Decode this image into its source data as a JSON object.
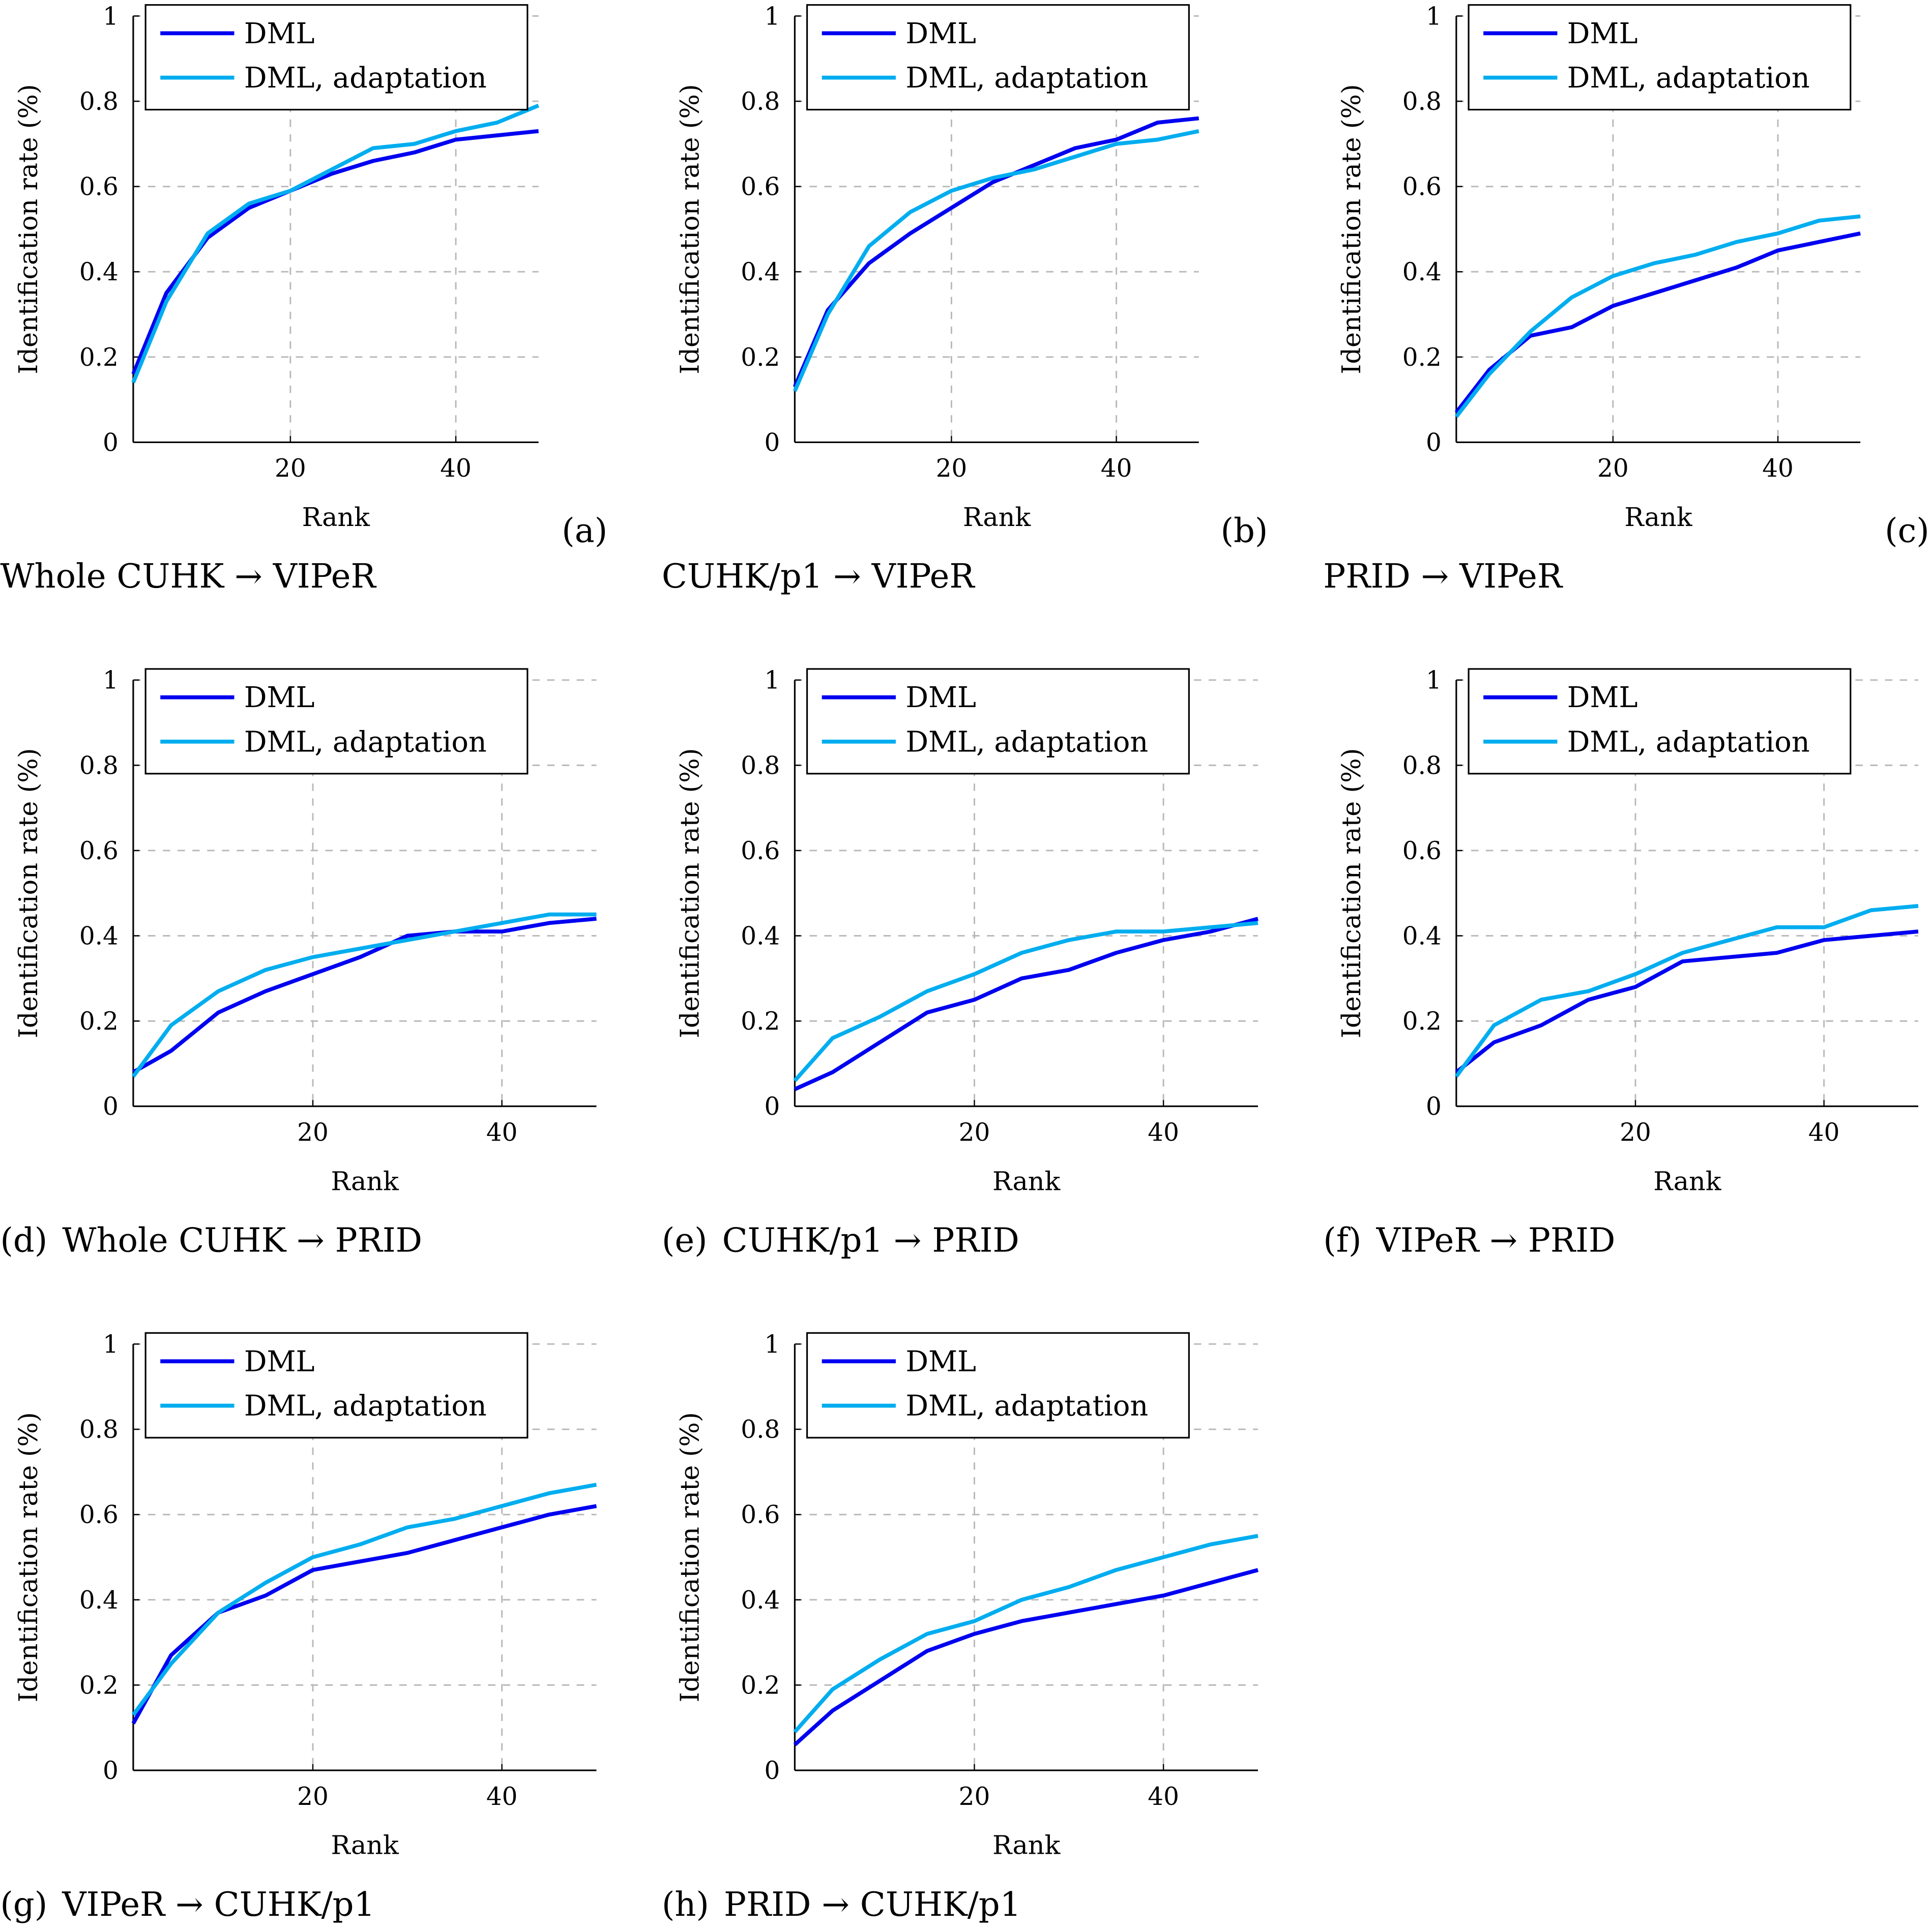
{
  "colors": {
    "dml": "#0000F0",
    "adapt": "#00ADEF",
    "grid": "#b8b8b8"
  },
  "chart_data": [
    {
      "type": "line",
      "panel": "(a)",
      "caption": "Whole CUHK → VIPeR",
      "xlabel": "Rank",
      "ylabel": "Identification rate (%)",
      "xlim": [
        1,
        50
      ],
      "ylim": [
        0,
        1
      ],
      "xticks": [
        20,
        40
      ],
      "yticks": [
        0,
        0.2,
        0.4,
        0.6,
        0.8,
        1
      ],
      "grid": true,
      "legend": "top-left",
      "x": [
        1,
        5,
        10,
        15,
        20,
        25,
        30,
        35,
        40,
        45,
        50
      ],
      "series": [
        {
          "name": "DML",
          "values": [
            0.16,
            0.35,
            0.48,
            0.55,
            0.59,
            0.63,
            0.66,
            0.68,
            0.71,
            0.72,
            0.73
          ]
        },
        {
          "name": "DML, adaptation",
          "values": [
            0.14,
            0.33,
            0.49,
            0.56,
            0.59,
            0.64,
            0.69,
            0.7,
            0.73,
            0.75,
            0.79
          ]
        }
      ]
    },
    {
      "type": "line",
      "panel": "(b)",
      "caption": "CUHK/p1 → VIPeR",
      "xlabel": "Rank",
      "ylabel": "Identification rate (%)",
      "xlim": [
        1,
        50
      ],
      "ylim": [
        0,
        1
      ],
      "xticks": [
        20,
        40
      ],
      "yticks": [
        0,
        0.2,
        0.4,
        0.6,
        0.8,
        1
      ],
      "grid": true,
      "legend": "top-left",
      "x": [
        1,
        5,
        10,
        15,
        20,
        25,
        30,
        35,
        40,
        45,
        50
      ],
      "series": [
        {
          "name": "DML",
          "values": [
            0.13,
            0.31,
            0.42,
            0.49,
            0.55,
            0.61,
            0.65,
            0.69,
            0.71,
            0.75,
            0.76
          ]
        },
        {
          "name": "DML, adaptation",
          "values": [
            0.12,
            0.3,
            0.46,
            0.54,
            0.59,
            0.62,
            0.64,
            0.67,
            0.7,
            0.71,
            0.73
          ]
        }
      ]
    },
    {
      "type": "line",
      "panel": "(c)",
      "caption": "PRID → VIPeR",
      "xlabel": "Rank",
      "ylabel": "Identification rate (%)",
      "xlim": [
        1,
        50
      ],
      "ylim": [
        0,
        1
      ],
      "xticks": [
        20,
        40
      ],
      "yticks": [
        0,
        0.2,
        0.4,
        0.6,
        0.8,
        1
      ],
      "grid": true,
      "legend": "top-left",
      "x": [
        1,
        5,
        10,
        15,
        20,
        25,
        30,
        35,
        40,
        45,
        50
      ],
      "series": [
        {
          "name": "DML",
          "values": [
            0.07,
            0.17,
            0.25,
            0.27,
            0.32,
            0.35,
            0.38,
            0.41,
            0.45,
            0.47,
            0.49
          ]
        },
        {
          "name": "DML, adaptation",
          "values": [
            0.06,
            0.16,
            0.26,
            0.34,
            0.39,
            0.42,
            0.44,
            0.47,
            0.49,
            0.52,
            0.53
          ]
        }
      ]
    },
    {
      "type": "line",
      "panel": "(d)",
      "caption": "Whole CUHK → PRID",
      "xlabel": "Rank",
      "ylabel": "Identification rate (%)",
      "xlim": [
        1,
        50
      ],
      "ylim": [
        0,
        1
      ],
      "xticks": [
        20,
        40
      ],
      "yticks": [
        0,
        0.2,
        0.4,
        0.6,
        0.8,
        1
      ],
      "grid": true,
      "legend": "top-left",
      "x": [
        1,
        5,
        10,
        15,
        20,
        25,
        30,
        35,
        40,
        45,
        50
      ],
      "series": [
        {
          "name": "DML",
          "values": [
            0.08,
            0.13,
            0.22,
            0.27,
            0.31,
            0.35,
            0.4,
            0.41,
            0.41,
            0.43,
            0.44
          ]
        },
        {
          "name": "DML, adaptation",
          "values": [
            0.07,
            0.19,
            0.27,
            0.32,
            0.35,
            0.37,
            0.39,
            0.41,
            0.43,
            0.45,
            0.45
          ]
        }
      ]
    },
    {
      "type": "line",
      "panel": "(e)",
      "caption": "CUHK/p1 → PRID",
      "xlabel": "Rank",
      "ylabel": "Identification rate (%)",
      "xlim": [
        1,
        50
      ],
      "ylim": [
        0,
        1
      ],
      "xticks": [
        20,
        40
      ],
      "yticks": [
        0,
        0.2,
        0.4,
        0.6,
        0.8,
        1
      ],
      "grid": true,
      "legend": "top-left",
      "x": [
        1,
        5,
        10,
        15,
        20,
        25,
        30,
        35,
        40,
        45,
        50
      ],
      "series": [
        {
          "name": "DML",
          "values": [
            0.04,
            0.08,
            0.15,
            0.22,
            0.25,
            0.3,
            0.32,
            0.36,
            0.39,
            0.41,
            0.44
          ]
        },
        {
          "name": "DML, adaptation",
          "values": [
            0.06,
            0.16,
            0.21,
            0.27,
            0.31,
            0.36,
            0.39,
            0.41,
            0.41,
            0.42,
            0.43
          ]
        }
      ]
    },
    {
      "type": "line",
      "panel": "(f)",
      "caption": "VIPeR → PRID",
      "xlabel": "Rank",
      "ylabel": "Identification rate (%)",
      "xlim": [
        1,
        50
      ],
      "ylim": [
        0,
        1
      ],
      "xticks": [
        20,
        40
      ],
      "yticks": [
        0,
        0.2,
        0.4,
        0.6,
        0.8,
        1
      ],
      "grid": true,
      "legend": "top-left",
      "x": [
        1,
        5,
        10,
        15,
        20,
        25,
        30,
        35,
        40,
        45,
        50
      ],
      "series": [
        {
          "name": "DML",
          "values": [
            0.08,
            0.15,
            0.19,
            0.25,
            0.28,
            0.34,
            0.35,
            0.36,
            0.39,
            0.4,
            0.41
          ]
        },
        {
          "name": "DML, adaptation",
          "values": [
            0.07,
            0.19,
            0.25,
            0.27,
            0.31,
            0.36,
            0.39,
            0.42,
            0.42,
            0.46,
            0.47
          ]
        }
      ]
    },
    {
      "type": "line",
      "panel": "(g)",
      "caption": "VIPeR → CUHK/p1",
      "xlabel": "Rank",
      "ylabel": "Identification rate (%)",
      "xlim": [
        1,
        50
      ],
      "ylim": [
        0,
        1
      ],
      "xticks": [
        20,
        40
      ],
      "yticks": [
        0,
        0.2,
        0.4,
        0.6,
        0.8,
        1
      ],
      "grid": true,
      "legend": "top-left",
      "x": [
        1,
        5,
        10,
        15,
        20,
        25,
        30,
        35,
        40,
        45,
        50
      ],
      "series": [
        {
          "name": "DML",
          "values": [
            0.11,
            0.27,
            0.37,
            0.41,
            0.47,
            0.49,
            0.51,
            0.54,
            0.57,
            0.6,
            0.62
          ]
        },
        {
          "name": "DML, adaptation",
          "values": [
            0.13,
            0.25,
            0.37,
            0.44,
            0.5,
            0.53,
            0.57,
            0.59,
            0.62,
            0.65,
            0.67
          ]
        }
      ]
    },
    {
      "type": "line",
      "panel": "(h)",
      "caption": "PRID → CUHK/p1",
      "xlabel": "Rank",
      "ylabel": "Identification rate (%)",
      "xlim": [
        1,
        50
      ],
      "ylim": [
        0,
        1
      ],
      "xticks": [
        20,
        40
      ],
      "yticks": [
        0,
        0.2,
        0.4,
        0.6,
        0.8,
        1
      ],
      "grid": true,
      "legend": "top-left",
      "x": [
        1,
        5,
        10,
        15,
        20,
        25,
        30,
        35,
        40,
        45,
        50
      ],
      "series": [
        {
          "name": "DML",
          "values": [
            0.06,
            0.14,
            0.21,
            0.28,
            0.32,
            0.35,
            0.37,
            0.39,
            0.41,
            0.44,
            0.47
          ]
        },
        {
          "name": "DML, adaptation",
          "values": [
            0.09,
            0.19,
            0.26,
            0.32,
            0.35,
            0.4,
            0.43,
            0.47,
            0.5,
            0.53,
            0.55
          ]
        }
      ]
    }
  ]
}
